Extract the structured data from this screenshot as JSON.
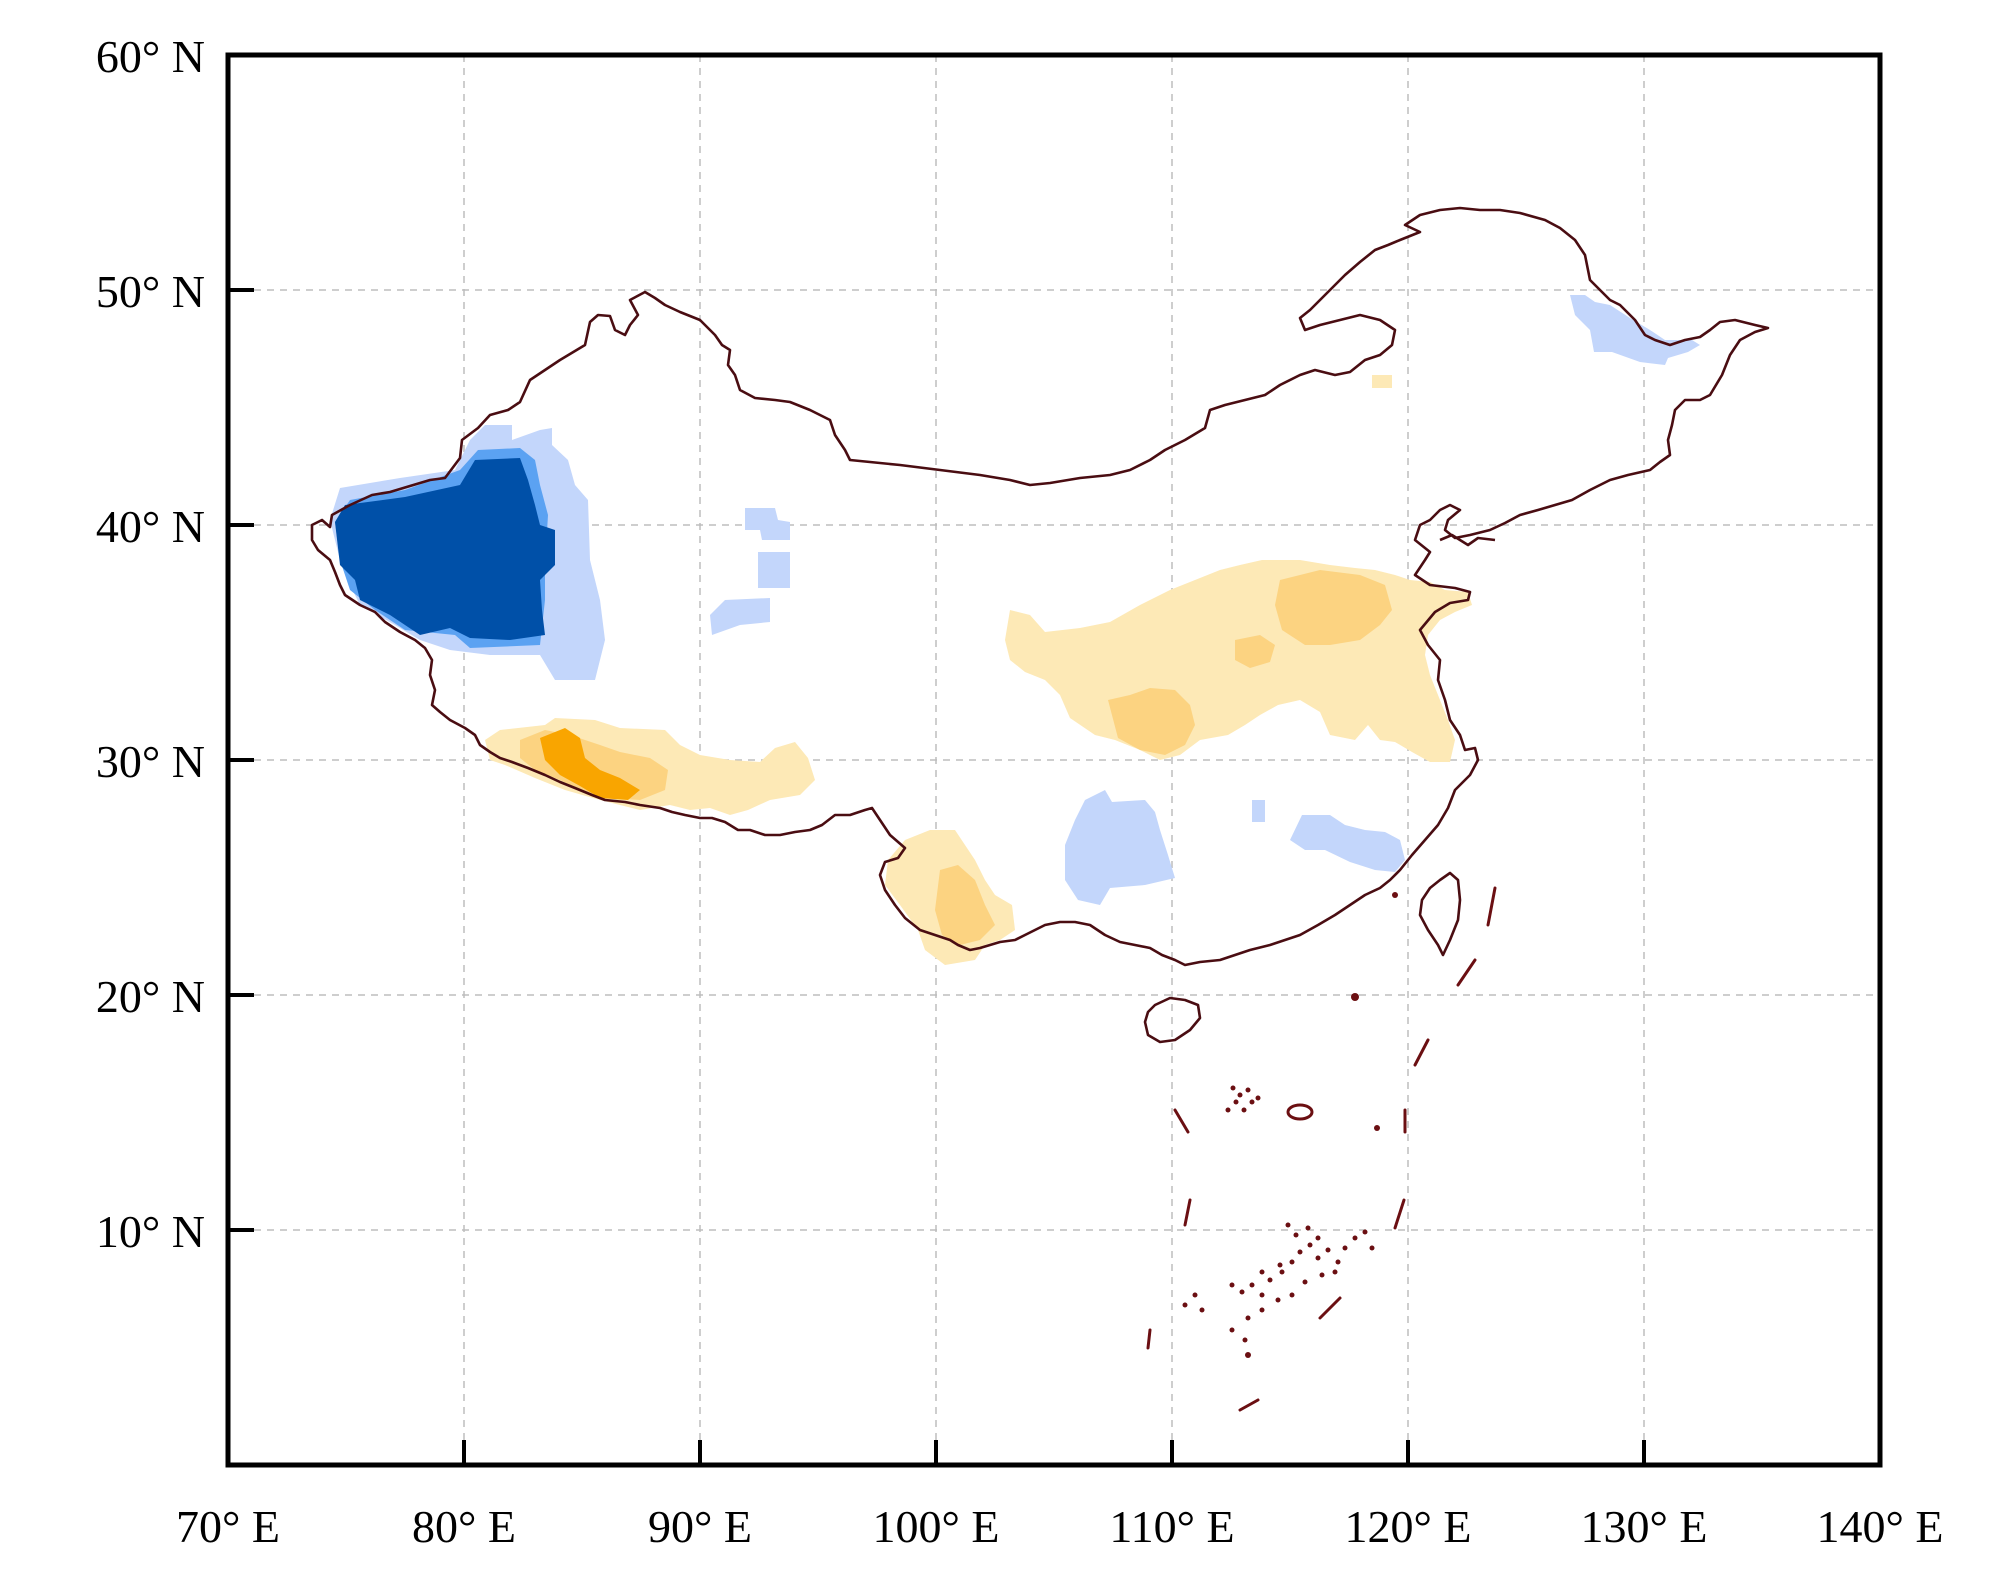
{
  "axes": {
    "x_ticks": [
      {
        "value": 70,
        "label": "70° E"
      },
      {
        "value": 80,
        "label": "80° E"
      },
      {
        "value": 90,
        "label": "90° E"
      },
      {
        "value": 100,
        "label": "100° E"
      },
      {
        "value": 110,
        "label": "110° E"
      },
      {
        "value": 120,
        "label": "120° E"
      },
      {
        "value": 130,
        "label": "130° E"
      },
      {
        "value": 140,
        "label": "140° E"
      }
    ],
    "y_ticks": [
      {
        "value": 60,
        "label": "60° N"
      },
      {
        "value": 50,
        "label": "50° N"
      },
      {
        "value": 40,
        "label": "40° N"
      },
      {
        "value": 30,
        "label": "30° N"
      },
      {
        "value": 20,
        "label": "20° N"
      },
      {
        "value": 10,
        "label": "10° N"
      }
    ],
    "xlim": [
      70,
      140
    ],
    "ylim": [
      0,
      60
    ],
    "grid": true
  },
  "colors": {
    "border": "#4a0d12",
    "dash_line": "#6b0f12",
    "deep_blue": "#0050a8",
    "mid_blue": "#5ba2f2",
    "light_blue": "#c3d6fb",
    "light_orange": "#fde9b6",
    "mid_orange": "#fcd381",
    "deep_orange": "#f9a500"
  }
}
